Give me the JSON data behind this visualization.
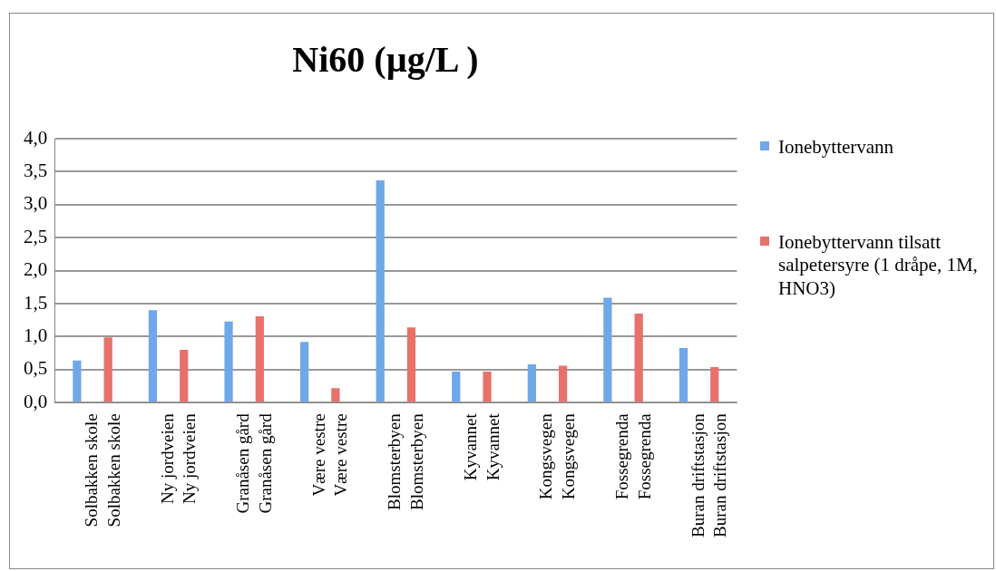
{
  "chart_data": {
    "type": "bar",
    "title": "Ni60 (µg/L )",
    "categories": [
      "Solbakken skole\nSolbakken skole",
      "Ny jordveien\nNy jordveien",
      "Granåsen gård\nGranåsen gård",
      "Være vestre\nVære vestre",
      "Blomsterbyen\nBlomsterbyen",
      "Kyvannet\nKyvannet",
      "Kongsvegen\nKongsvegen",
      "Fossegrenda\nFossegrenda",
      "Buran driftstasjon\nBuran driftstasjon"
    ],
    "series": [
      {
        "name": "Ionebyttervann",
        "color": "#6fa8e8",
        "values": [
          0.64,
          1.4,
          1.23,
          0.92,
          3.37,
          0.47,
          0.58,
          1.59,
          0.83
        ]
      },
      {
        "name": "Ionebyttervann tilsatt salpetersyre (1 dråpe, 1M, HNO3)",
        "color": "#e8716b",
        "values": [
          0.99,
          0.8,
          1.31,
          0.22,
          1.14,
          0.47,
          0.56,
          1.35,
          0.54
        ]
      }
    ],
    "ylim": [
      0,
      4
    ],
    "yticks": [
      {
        "value": 0,
        "label": "0,0"
      },
      {
        "value": 0.5,
        "label": "0,5"
      },
      {
        "value": 1,
        "label": "1,0"
      },
      {
        "value": 1.5,
        "label": "1,5"
      },
      {
        "value": 2,
        "label": "2,0"
      },
      {
        "value": 2.5,
        "label": "2,5"
      },
      {
        "value": 3,
        "label": "3,0"
      },
      {
        "value": 3.5,
        "label": "3,5"
      },
      {
        "value": 4,
        "label": "4,0"
      }
    ],
    "grid": "y",
    "legend": "right"
  }
}
